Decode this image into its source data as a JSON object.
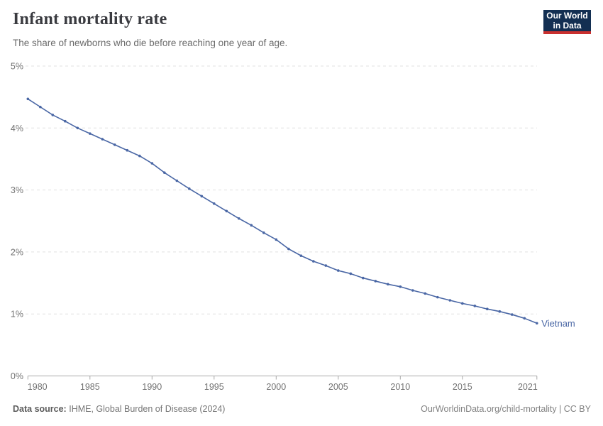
{
  "header": {
    "title": "Infant mortality rate",
    "subtitle": "The share of newborns who die before reaching one year of age.",
    "logo": {
      "line1": "Our World",
      "line2": "in Data"
    }
  },
  "footer": {
    "source_label": "Data source:",
    "source_text": "IHME, Global Burden of Disease (2024)",
    "attribution": "OurWorldinData.org/child-mortality | CC BY"
  },
  "colors": {
    "line": "#4a67a5",
    "entity_label": "#4a67a5",
    "grid": "#e0e0e0",
    "axis": "#a8a8a8",
    "tick_label": "#737373",
    "title": "#3a3b40",
    "subtitle": "#6b6b6b",
    "logo_bg": "#132f52",
    "logo_stripe": "#c9302f"
  },
  "chart_data": {
    "type": "line",
    "title": "Infant mortality rate",
    "subtitle": "The share of newborns who die before reaching one year of age.",
    "unit": "%",
    "xlim": [
      1980,
      2021
    ],
    "ylim": [
      0,
      5
    ],
    "grid": "horizontal-dashed",
    "legend": "end-of-line-label",
    "x_ticks": [
      {
        "value": 1980,
        "label": "1980"
      },
      {
        "value": 1985,
        "label": "1985"
      },
      {
        "value": 1990,
        "label": "1990"
      },
      {
        "value": 1995,
        "label": "1995"
      },
      {
        "value": 2000,
        "label": "2000"
      },
      {
        "value": 2005,
        "label": "2005"
      },
      {
        "value": 2010,
        "label": "2010"
      },
      {
        "value": 2015,
        "label": "2015"
      },
      {
        "value": 2021,
        "label": "2021"
      }
    ],
    "y_ticks": [
      {
        "value": 0,
        "label": "0%"
      },
      {
        "value": 1,
        "label": "1%"
      },
      {
        "value": 2,
        "label": "2%"
      },
      {
        "value": 3,
        "label": "3%"
      },
      {
        "value": 4,
        "label": "4%"
      },
      {
        "value": 5,
        "label": "5%"
      }
    ],
    "series": [
      {
        "name": "Vietnam",
        "color": "#4a67a5",
        "x": [
          1980,
          1981,
          1982,
          1983,
          1984,
          1985,
          1986,
          1987,
          1988,
          1989,
          1990,
          1991,
          1992,
          1993,
          1994,
          1995,
          1996,
          1997,
          1998,
          1999,
          2000,
          2001,
          2002,
          2003,
          2004,
          2005,
          2006,
          2007,
          2008,
          2009,
          2010,
          2011,
          2012,
          2013,
          2014,
          2015,
          2016,
          2017,
          2018,
          2019,
          2020,
          2021
        ],
        "values": [
          4.47,
          4.34,
          4.21,
          4.11,
          4.0,
          3.91,
          3.82,
          3.73,
          3.64,
          3.55,
          3.43,
          3.28,
          3.15,
          3.02,
          2.9,
          2.78,
          2.66,
          2.54,
          2.43,
          2.31,
          2.2,
          2.05,
          1.94,
          1.85,
          1.78,
          1.7,
          1.65,
          1.58,
          1.53,
          1.48,
          1.44,
          1.38,
          1.33,
          1.27,
          1.22,
          1.17,
          1.13,
          1.08,
          1.04,
          0.99,
          0.93,
          0.85
        ]
      }
    ]
  }
}
